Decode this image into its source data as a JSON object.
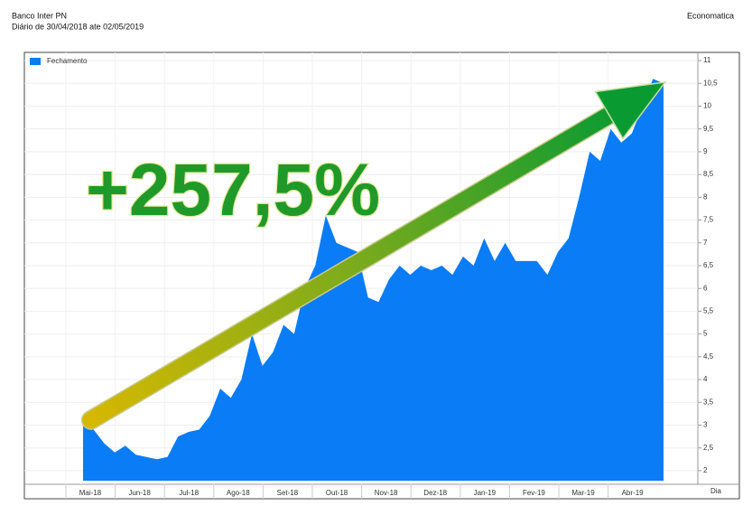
{
  "header": {
    "title": "Banco Inter PN",
    "subtitle": "Diário de 30/04/2018 ate 02/05/2019",
    "source": "Economatica"
  },
  "chart_data": {
    "type": "area",
    "annotation": "+257,5%",
    "x_label": "Dia",
    "month_labels": [
      "Mai-18",
      "Jun-18",
      "Jul-18",
      "Ago-18",
      "Set-18",
      "Out-18",
      "Nov-18",
      "Dez-18",
      "Jan-19",
      "Fev-19",
      "Mar-19",
      "Abr-19"
    ],
    "series": [
      {
        "name": "Fechamento",
        "color": "#0a7cf5",
        "values": [
          3.0,
          2.9,
          2.6,
          2.4,
          2.55,
          2.35,
          2.3,
          2.25,
          2.3,
          2.75,
          2.85,
          2.9,
          3.2,
          3.8,
          3.6,
          4.0,
          5.0,
          4.3,
          4.6,
          5.2,
          5.0,
          6.0,
          6.5,
          7.6,
          7.0,
          6.9,
          6.8,
          5.8,
          5.7,
          6.2,
          6.5,
          6.3,
          6.5,
          6.4,
          6.5,
          6.3,
          6.7,
          6.5,
          7.1,
          6.6,
          7.0,
          6.6,
          6.6,
          6.6,
          6.3,
          6.8,
          7.1,
          8.0,
          9.0,
          8.8,
          9.5,
          9.2,
          9.4,
          10.0,
          10.6,
          10.5
        ]
      }
    ],
    "ylim": [
      1.78,
      11.1
    ],
    "yticks": [
      2,
      {
        "value": 2.5,
        "label": "2,5"
      },
      3,
      {
        "value": 3.5,
        "label": "3,5"
      },
      4,
      {
        "value": 4.5,
        "label": "4,5"
      },
      5,
      {
        "value": 5.5,
        "label": "5,5"
      },
      6,
      {
        "value": 6.5,
        "label": "6,5"
      },
      7,
      {
        "value": 7.5,
        "label": "7,5"
      },
      8,
      {
        "value": 8.5,
        "label": "8,5"
      },
      9,
      {
        "value": 9.5,
        "label": "9,5"
      },
      10,
      {
        "value": 10.5,
        "label": "10,5"
      },
      11
    ],
    "grid": true
  }
}
